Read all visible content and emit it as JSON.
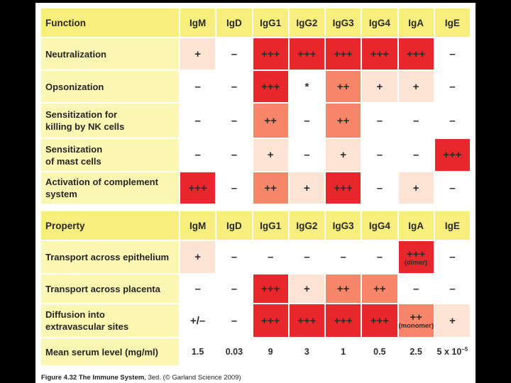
{
  "function_table": {
    "header": [
      "Function",
      "IgM",
      "IgD",
      "IgG1",
      "IgG2",
      "IgG3",
      "IgG4",
      "IgA",
      "IgE"
    ],
    "rows": [
      {
        "label": [
          "Neutralization"
        ],
        "cells": [
          {
            "t": "+",
            "c": 1
          },
          {
            "t": "–",
            "c": 0
          },
          {
            "t": "+++",
            "c": 3
          },
          {
            "t": "+++",
            "c": 3
          },
          {
            "t": "+++",
            "c": 3
          },
          {
            "t": "+++",
            "c": 3
          },
          {
            "t": "+++",
            "c": 3
          },
          {
            "t": "–",
            "c": 0
          }
        ]
      },
      {
        "label": [
          "Opsonization"
        ],
        "cells": [
          {
            "t": "–",
            "c": 0
          },
          {
            "t": "–",
            "c": 0
          },
          {
            "t": "+++",
            "c": 3
          },
          {
            "t": "*",
            "c": 0
          },
          {
            "t": "++",
            "c": 2
          },
          {
            "t": "+",
            "c": 1
          },
          {
            "t": "+",
            "c": 1
          },
          {
            "t": "–",
            "c": 0
          }
        ]
      },
      {
        "label": [
          "Sensitization for",
          "killing by NK cells"
        ],
        "cells": [
          {
            "t": "–",
            "c": 0
          },
          {
            "t": "–",
            "c": 0
          },
          {
            "t": "++",
            "c": 2
          },
          {
            "t": "–",
            "c": 0
          },
          {
            "t": "++",
            "c": 2
          },
          {
            "t": "–",
            "c": 0
          },
          {
            "t": "–",
            "c": 0
          },
          {
            "t": "–",
            "c": 0
          }
        ]
      },
      {
        "label": [
          "Sensitization",
          "of mast cells"
        ],
        "cells": [
          {
            "t": "–",
            "c": 0
          },
          {
            "t": "–",
            "c": 0
          },
          {
            "t": "+",
            "c": 1
          },
          {
            "t": "–",
            "c": 0
          },
          {
            "t": "+",
            "c": 1
          },
          {
            "t": "–",
            "c": 0
          },
          {
            "t": "–",
            "c": 0
          },
          {
            "t": "+++",
            "c": 3
          }
        ]
      },
      {
        "label": [
          "Activation of complement",
          "system"
        ],
        "cells": [
          {
            "t": "+++",
            "c": 3
          },
          {
            "t": "–",
            "c": 0
          },
          {
            "t": "++",
            "c": 2
          },
          {
            "t": "+",
            "c": 1
          },
          {
            "t": "+++",
            "c": 3
          },
          {
            "t": "–",
            "c": 0
          },
          {
            "t": "+",
            "c": 1
          },
          {
            "t": "–",
            "c": 0
          }
        ]
      }
    ]
  },
  "property_table": {
    "header": [
      "Property",
      "IgM",
      "IgD",
      "IgG1",
      "IgG2",
      "IgG3",
      "IgG4",
      "IgA",
      "IgE"
    ],
    "rows": [
      {
        "label": [
          "Transport across epithelium"
        ],
        "cells": [
          {
            "t": "+",
            "c": 1
          },
          {
            "t": "–",
            "c": 0
          },
          {
            "t": "–",
            "c": 0
          },
          {
            "t": "–",
            "c": 0
          },
          {
            "t": "–",
            "c": 0
          },
          {
            "t": "–",
            "c": 0
          },
          {
            "t": "+++",
            "c": 3,
            "sub": "(dimer)"
          },
          {
            "t": "–",
            "c": 0
          }
        ]
      },
      {
        "label": [
          "Transport across placenta"
        ],
        "cells": [
          {
            "t": "–",
            "c": 0
          },
          {
            "t": "–",
            "c": 0
          },
          {
            "t": "+++",
            "c": 3
          },
          {
            "t": "+",
            "c": 1
          },
          {
            "t": "++",
            "c": 2
          },
          {
            "t": "++",
            "c": 2
          },
          {
            "t": "–",
            "c": 0
          },
          {
            "t": "–",
            "c": 0
          }
        ]
      },
      {
        "label": [
          "Diffusion into",
          "extravascular sites"
        ],
        "cells": [
          {
            "t": "+/–",
            "c": 0
          },
          {
            "t": "–",
            "c": 0
          },
          {
            "t": "+++",
            "c": 3
          },
          {
            "t": "+++",
            "c": 3
          },
          {
            "t": "+++",
            "c": 3
          },
          {
            "t": "+++",
            "c": 3
          },
          {
            "t": "++",
            "c": 2,
            "sub": "(monomer)"
          },
          {
            "t": "+",
            "c": 1
          }
        ]
      },
      {
        "label": [
          "Mean serum level (mg/ml)"
        ],
        "numeric": true,
        "cells": [
          {
            "t": "1.5",
            "c": 0
          },
          {
            "t": "0.03",
            "c": 0
          },
          {
            "t": "9",
            "c": 0
          },
          {
            "t": "3",
            "c": 0
          },
          {
            "t": "1",
            "c": 0
          },
          {
            "t": "0.5",
            "c": 0
          },
          {
            "t": "2.5",
            "c": 0
          },
          {
            "t": "5 x 10",
            "sup": "–5",
            "c": 0
          }
        ]
      }
    ]
  },
  "caption": {
    "figure": "Figure 4.32",
    "book": "The Immune System",
    "rest": ", 3ed. (© Garland Science 2009)"
  },
  "colors": {
    "header_bg": "#f7ee7d",
    "label_bg": "#fbf7b3",
    "level_0": "#ffffff",
    "level_1": "#fde3d4",
    "level_2": "#f6866a",
    "level_3": "#e8272d"
  }
}
